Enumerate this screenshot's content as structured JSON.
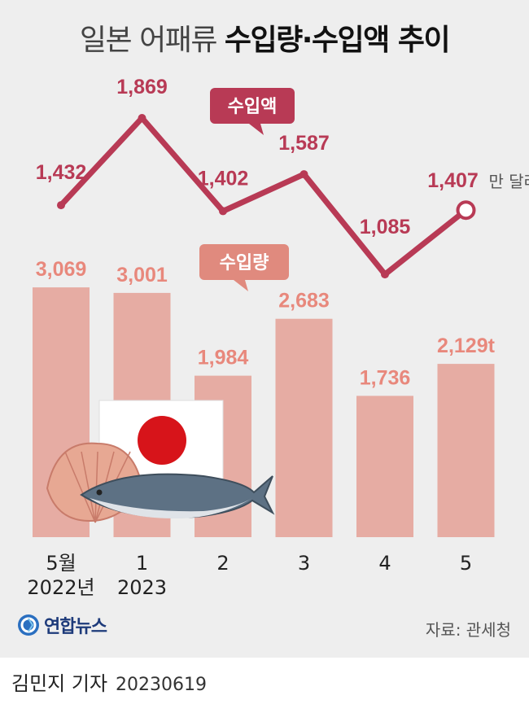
{
  "title": {
    "light": "일본 어패류",
    "bold": "수입량·수입액 추이"
  },
  "chart_data": {
    "type": "bar+line",
    "categories": [
      [
        "5월",
        "2022년"
      ],
      [
        "1",
        "2023"
      ],
      [
        "2",
        ""
      ],
      [
        "3",
        ""
      ],
      [
        "4",
        ""
      ],
      [
        "5",
        ""
      ]
    ],
    "series": [
      {
        "name": "수입량",
        "type": "bar",
        "values": [
          3069,
          3001,
          1984,
          2683,
          1736,
          2129
        ],
        "labels": [
          "3,069",
          "3,001",
          "1,984",
          "2,683",
          "1,736",
          "2,129t"
        ],
        "color": "#e6aca3",
        "label_color": "#e8887c"
      },
      {
        "name": "수입액",
        "type": "line",
        "values": [
          1432,
          1869,
          1402,
          1587,
          1085,
          1407
        ],
        "labels": [
          "1,432",
          "1,869",
          "1,402",
          "1,587",
          "1,085",
          "1,407"
        ],
        "unit": "만 달러",
        "color": "#b83a55"
      }
    ],
    "legend": [
      "수입액",
      "수입량"
    ]
  },
  "source": "자료: 관세청",
  "logo": {
    "name": "연합뉴스",
    "icon": "yonhap-logo-icon"
  },
  "reporter": {
    "name": "김민지 기자",
    "date": "20230619"
  }
}
